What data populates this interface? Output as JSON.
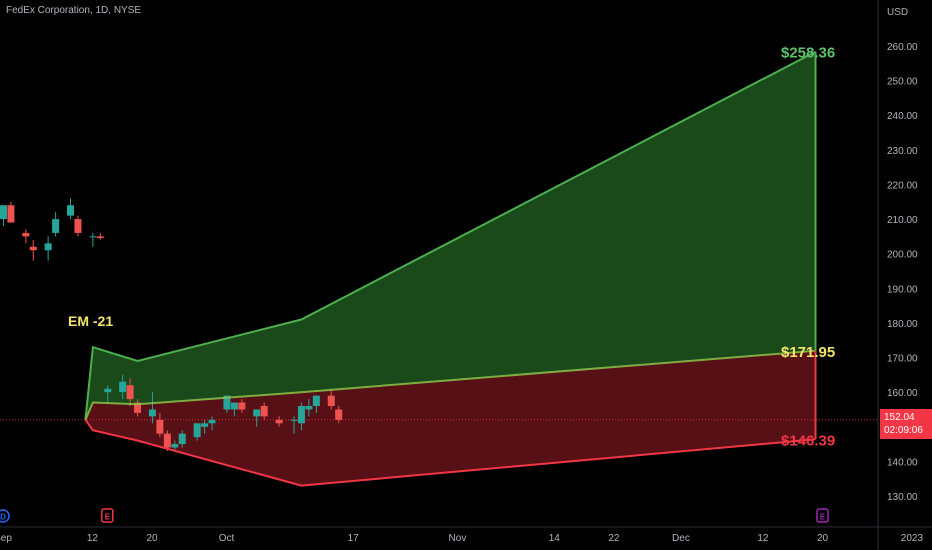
{
  "header": {
    "symbol_line": "FedEx Corporation, 1D, NYSE"
  },
  "price_tag": {
    "price": "152.04",
    "countdown": "02:09:06",
    "color": "#f23645"
  },
  "chart_data": {
    "type": "candlestick-projection",
    "currency_label": "USD",
    "ylim": [
      122,
      272
    ],
    "y_ticks": [
      "130.00",
      "140.00",
      "150.00",
      "160.00",
      "170.00",
      "180.00",
      "190.00",
      "200.00",
      "210.00",
      "220.00",
      "230.00",
      "240.00",
      "250.00",
      "260.00"
    ],
    "x_ticks": [
      {
        "label": "Sep",
        "day": 0
      },
      {
        "label": "12",
        "day": 12
      },
      {
        "label": "20",
        "day": 20
      },
      {
        "label": "Oct",
        "day": 30
      },
      {
        "label": "17",
        "day": 47
      },
      {
        "label": "Nov",
        "day": 61
      },
      {
        "label": "14",
        "day": 74
      },
      {
        "label": "22",
        "day": 82
      },
      {
        "label": "Dec",
        "day": 91
      },
      {
        "label": "12",
        "day": 102
      },
      {
        "label": "20",
        "day": 110
      },
      {
        "label": "2023",
        "day": 122
      }
    ],
    "candles": [
      {
        "day": -1,
        "o": 214,
        "h": 215,
        "l": 210,
        "c": 211
      },
      {
        "day": 1,
        "o": 210,
        "h": 214,
        "l": 208,
        "c": 214
      },
      {
        "day": 2,
        "o": 214,
        "h": 215,
        "l": 209,
        "c": 209
      },
      {
        "day": 4,
        "o": 206,
        "h": 207,
        "l": 203,
        "c": 205
      },
      {
        "day": 5,
        "o": 202,
        "h": 204,
        "l": 198,
        "c": 201
      },
      {
        "day": 7,
        "o": 201,
        "h": 205,
        "l": 198,
        "c": 203
      },
      {
        "day": 8,
        "o": 206,
        "h": 212,
        "l": 205,
        "c": 210
      },
      {
        "day": 10,
        "o": 211,
        "h": 216,
        "l": 210,
        "c": 214
      },
      {
        "day": 11,
        "o": 210,
        "h": 211,
        "l": 205,
        "c": 206
      },
      {
        "day": 13,
        "o": 205,
        "h": 206,
        "l": 202,
        "c": 205
      },
      {
        "day": 14,
        "o": 205,
        "h": 206,
        "l": 204,
        "c": 204.5
      },
      {
        "day": 15,
        "o": 160,
        "h": 162,
        "l": 157,
        "c": 161
      },
      {
        "day": 17,
        "o": 160,
        "h": 165,
        "l": 158,
        "c": 163
      },
      {
        "day": 18,
        "o": 162,
        "h": 164,
        "l": 156,
        "c": 158
      },
      {
        "day": 19,
        "o": 157,
        "h": 158,
        "l": 153,
        "c": 154
      },
      {
        "day": 21,
        "o": 153,
        "h": 160,
        "l": 151,
        "c": 155
      },
      {
        "day": 22,
        "o": 152,
        "h": 154,
        "l": 147,
        "c": 148
      },
      {
        "day": 23,
        "o": 148,
        "h": 149,
        "l": 143,
        "c": 144
      },
      {
        "day": 24,
        "o": 144,
        "h": 146,
        "l": 143,
        "c": 145
      },
      {
        "day": 25,
        "o": 145,
        "h": 149,
        "l": 144,
        "c": 148
      },
      {
        "day": 27,
        "o": 147,
        "h": 151,
        "l": 146,
        "c": 151
      },
      {
        "day": 28,
        "o": 150,
        "h": 152,
        "l": 148,
        "c": 151
      },
      {
        "day": 29,
        "o": 151,
        "h": 153,
        "l": 149,
        "c": 152
      },
      {
        "day": 31,
        "o": 155,
        "h": 159,
        "l": 154,
        "c": 159
      },
      {
        "day": 32,
        "o": 155,
        "h": 157,
        "l": 153,
        "c": 157
      },
      {
        "day": 33,
        "o": 157,
        "h": 158,
        "l": 154,
        "c": 155
      },
      {
        "day": 35,
        "o": 153,
        "h": 155,
        "l": 150,
        "c": 155
      },
      {
        "day": 36,
        "o": 156,
        "h": 157,
        "l": 152,
        "c": 153
      },
      {
        "day": 38,
        "o": 152,
        "h": 153,
        "l": 150,
        "c": 151
      },
      {
        "day": 40,
        "o": 152,
        "h": 153,
        "l": 148,
        "c": 152
      },
      {
        "day": 41,
        "o": 151,
        "h": 157,
        "l": 149,
        "c": 156
      },
      {
        "day": 42,
        "o": 155,
        "h": 158,
        "l": 153,
        "c": 156
      },
      {
        "day": 43,
        "o": 156,
        "h": 158,
        "l": 154,
        "c": 159
      },
      {
        "day": 45,
        "o": 159,
        "h": 161,
        "l": 155,
        "c": 156
      },
      {
        "day": 46,
        "o": 155,
        "h": 156,
        "l": 151,
        "c": 152
      }
    ],
    "expected_move": {
      "label": "EM -21",
      "upper_green": [
        [
          12,
          152
        ],
        [
          13,
          173
        ],
        [
          19,
          169
        ],
        [
          41,
          181
        ],
        [
          110,
          258.36
        ]
      ],
      "mid_line": [
        [
          12,
          152
        ],
        [
          13,
          157
        ],
        [
          19,
          156.5
        ],
        [
          41,
          160
        ],
        [
          110,
          171.95
        ]
      ],
      "lower_red": [
        [
          12,
          152
        ],
        [
          13,
          149
        ],
        [
          19,
          146
        ],
        [
          41,
          133
        ],
        [
          110,
          146.39
        ]
      ],
      "upper_color": "#4caf50",
      "lower_color": "#f23645",
      "fill_upper": "#1b4d1b",
      "fill_lower": "#5c1117"
    },
    "target_labels": [
      {
        "text": "$258.36",
        "value": 258.36,
        "color": "#5ec26a"
      },
      {
        "text": "$171.95",
        "value": 171.95,
        "color": "#f5e56b"
      },
      {
        "text": "$146.39",
        "value": 146.39,
        "color": "#f23645"
      }
    ],
    "current_price_line": 152.04,
    "event_markers": [
      {
        "letter": "D",
        "day": 0,
        "color": "#2962ff"
      },
      {
        "letter": "E",
        "day": 14,
        "color": "#f23645"
      },
      {
        "letter": "E",
        "day": 110,
        "color": "#9c27b0"
      }
    ],
    "up_color": "#26a69a",
    "down_color": "#ef5350"
  }
}
